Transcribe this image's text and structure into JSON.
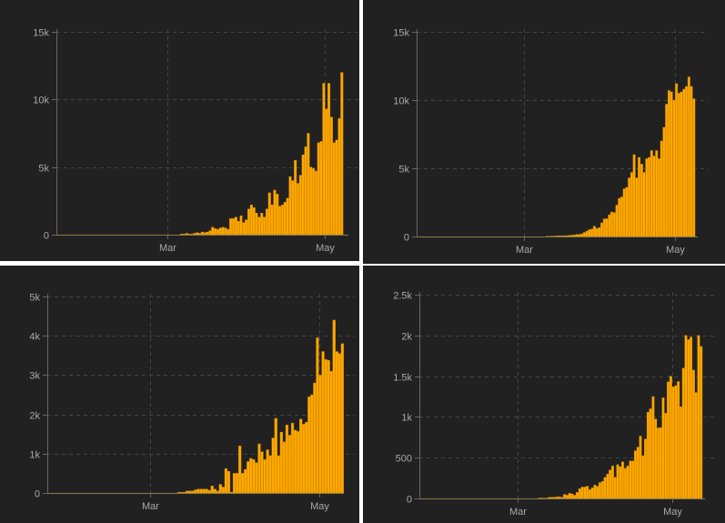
{
  "colors": {
    "background": "#212121",
    "bar": "#ffa800",
    "bar_edge": "#c98400",
    "grid": "#444444",
    "axis": "#666666",
    "tick_text": "#a8a8a8"
  },
  "chart_data": [
    {
      "type": "bar",
      "x_unit": "days since Mar 1",
      "xlim": [
        -43,
        70
      ],
      "ylim": [
        0,
        15000
      ],
      "y_ticks": [
        {
          "value": 0,
          "label": "0"
        },
        {
          "value": 5000,
          "label": "5k"
        },
        {
          "value": 10000,
          "label": "10k"
        },
        {
          "value": 15000,
          "label": "15k"
        }
      ],
      "x_ticks": [
        {
          "value": 0,
          "label": "Mar"
        },
        {
          "value": 61,
          "label": "May"
        }
      ],
      "grid": true,
      "series": [
        {
          "first_day": 5,
          "values": [
            50,
            50,
            100,
            50,
            50,
            100,
            150,
            100,
            200,
            150,
            200,
            300,
            560,
            450,
            400,
            500,
            550,
            500,
            400,
            1200,
            1200,
            1300,
            1000,
            1400,
            900,
            1100,
            1900,
            2200,
            2000,
            1600,
            1300,
            1600,
            1300,
            1900,
            3100,
            2200,
            3300,
            3000,
            2100,
            2200,
            2400,
            2700,
            4300,
            4000,
            5500,
            3800,
            4400,
            5900,
            6500,
            7500,
            5000,
            4900,
            4700,
            6800,
            6900,
            11200,
            9300,
            11200,
            8700,
            6800,
            7000,
            8600,
            12000
          ]
        }
      ]
    },
    {
      "type": "bar",
      "x_unit": "days since Mar 1",
      "xlim": [
        -43,
        70
      ],
      "ylim": [
        0,
        15000
      ],
      "y_ticks": [
        {
          "value": 0,
          "label": "0"
        },
        {
          "value": 5000,
          "label": "5k"
        },
        {
          "value": 10000,
          "label": "10k"
        },
        {
          "value": 15000,
          "label": "15k"
        }
      ],
      "x_ticks": [
        {
          "value": 0,
          "label": "Mar"
        },
        {
          "value": 61,
          "label": "May"
        }
      ],
      "grid": true,
      "series": [
        {
          "first_day": 9,
          "values": [
            20,
            20,
            30,
            30,
            50,
            50,
            50,
            60,
            60,
            80,
            100,
            120,
            150,
            150,
            200,
            300,
            400,
            500,
            550,
            750,
            600,
            650,
            1000,
            1300,
            1300,
            1600,
            1800,
            1750,
            2300,
            2800,
            2900,
            3500,
            3600,
            4300,
            4700,
            6000,
            4300,
            5800,
            5300,
            4700,
            5700,
            5800,
            6300,
            5900,
            6300,
            5700,
            7000,
            8000,
            9700,
            10700,
            10600,
            10000,
            11200,
            10500,
            10600,
            10800,
            11000,
            11700,
            11000,
            10100
          ]
        }
      ]
    },
    {
      "type": "bar",
      "x_unit": "days since Mar 1",
      "xlim": [
        -37,
        70
      ],
      "ylim": [
        0,
        5000
      ],
      "y_ticks": [
        {
          "value": 0,
          "label": "0"
        },
        {
          "value": 1000,
          "label": "1k"
        },
        {
          "value": 2000,
          "label": "2k"
        },
        {
          "value": 3000,
          "label": "3k"
        },
        {
          "value": 4000,
          "label": "4k"
        },
        {
          "value": 5000,
          "label": "5k"
        }
      ],
      "x_ticks": [
        {
          "value": 0,
          "label": "Mar"
        },
        {
          "value": 61,
          "label": "May"
        }
      ],
      "grid": true,
      "series": [
        {
          "first_day": 10,
          "values": [
            20,
            20,
            20,
            50,
            50,
            50,
            80,
            100,
            100,
            100,
            100,
            70,
            180,
            100,
            50,
            220,
            150,
            620,
            550,
            20,
            500,
            500,
            1200,
            500,
            600,
            800,
            880,
            850,
            770,
            1250,
            1050,
            850,
            1100,
            950,
            1400,
            1900,
            950,
            1550,
            1300,
            1730,
            1470,
            1780,
            1600,
            1570,
            1880,
            1750,
            1800,
            2450,
            2500,
            2800,
            3950,
            3000,
            3600,
            3400,
            3380,
            3100,
            4400,
            3600,
            3550,
            3800
          ]
        }
      ]
    },
    {
      "type": "bar",
      "x_unit": "days since Mar 1",
      "xlim": [
        -39,
        74
      ],
      "ylim": [
        0,
        2500
      ],
      "y_ticks": [
        {
          "value": 0,
          "label": "0"
        },
        {
          "value": 500,
          "label": "500"
        },
        {
          "value": 1000,
          "label": "1k"
        },
        {
          "value": 1500,
          "label": "1.5k"
        },
        {
          "value": 2000,
          "label": "2k"
        },
        {
          "value": 2500,
          "label": "2.5k"
        }
      ],
      "x_ticks": [
        {
          "value": 0,
          "label": "Mar"
        },
        {
          "value": 61,
          "label": "May"
        }
      ],
      "grid": true,
      "series": [
        {
          "first_day": 8,
          "values": [
            5,
            5,
            5,
            5,
            15,
            15,
            15,
            20,
            20,
            15,
            50,
            40,
            65,
            55,
            40,
            75,
            120,
            140,
            140,
            150,
            110,
            130,
            165,
            150,
            195,
            210,
            260,
            300,
            350,
            400,
            260,
            415,
            390,
            450,
            370,
            400,
            460,
            460,
            585,
            630,
            765,
            525,
            730,
            1060,
            1100,
            1250,
            975,
            865,
            870,
            1235,
            1045,
            1430,
            1500,
            1370,
            1385,
            1435,
            1125,
            1600,
            2000,
            1950,
            1980,
            1575,
            1300,
            2000,
            1865
          ]
        }
      ]
    }
  ]
}
